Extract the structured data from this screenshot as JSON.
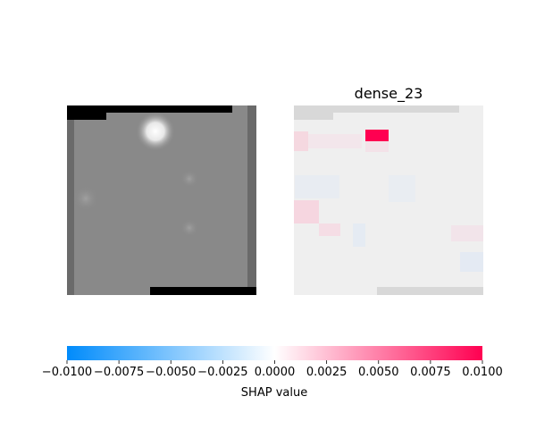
{
  "chart_data": [
    {
      "type": "heatmap",
      "panel": "input-image",
      "title": "",
      "grid": false,
      "description_colors": {
        "background_gray": "#898989",
        "black_band": "#000000",
        "border_gray": "#6a6a6a",
        "bright_spot": "#ffffff"
      }
    },
    {
      "type": "heatmap",
      "panel": "shap-overlay",
      "title": "dense_23",
      "grid": false,
      "highlighted_cell_value": 0.01
    },
    {
      "type": "colorbar",
      "label": "SHAP value",
      "range": [
        -0.01,
        0.01
      ],
      "ticks": [
        -0.01,
        -0.0075,
        -0.005,
        -0.0025,
        0.0,
        0.0025,
        0.005,
        0.0075,
        0.01
      ],
      "tick_labels": [
        "−0.0100",
        "−0.0075",
        "−0.0050",
        "−0.0025",
        "0.0000",
        "0.0025",
        "0.0050",
        "0.0075",
        "0.0100"
      ],
      "colors": {
        "negative": "#008bfb",
        "neutral": "#ffffff",
        "positive": "#ff0051"
      }
    }
  ]
}
